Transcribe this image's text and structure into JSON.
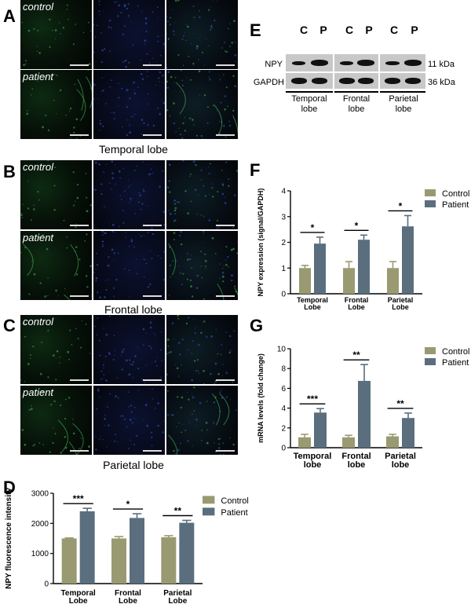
{
  "panels": {
    "A": "A",
    "B": "B",
    "C": "C",
    "D": "D",
    "E": "E",
    "F": "F",
    "G": "G"
  },
  "micrographs": {
    "control_label": "control",
    "patient_label": "patient",
    "regions": [
      "Temporal lobe",
      "Frontal lobe",
      "Parietal lobe"
    ]
  },
  "western_blot": {
    "lanes": [
      "C",
      "P",
      "C",
      "P",
      "C",
      "P"
    ],
    "rows": [
      {
        "protein": "NPY",
        "size": "11 kDa"
      },
      {
        "protein": "GAPDH",
        "size": "36 kDa"
      }
    ],
    "groups": [
      {
        "line1": "Temporal",
        "line2": "lobe"
      },
      {
        "line1": "Frontal",
        "line2": "lobe"
      },
      {
        "line1": "Parietal",
        "line2": "lobe"
      }
    ]
  },
  "colors": {
    "control": "#9a9a72",
    "patient": "#5a6e7e"
  },
  "chart_data": [
    {
      "id": "D",
      "type": "bar",
      "categories": [
        [
          "Temporal",
          "Lobe"
        ],
        [
          "Frontal",
          "Lobe"
        ],
        [
          "Parietal",
          "Lobe"
        ]
      ],
      "series": [
        {
          "name": "Control",
          "values": [
            1500,
            1500,
            1540
          ],
          "errors": [
            15,
            60,
            50
          ]
        },
        {
          "name": "Patient",
          "values": [
            2400,
            2180,
            2020
          ],
          "errors": [
            100,
            140,
            80
          ]
        }
      ],
      "significance": [
        "***",
        "*",
        "**"
      ],
      "ylabel": "NPY fluorescence intensity",
      "ylim": [
        0,
        3000
      ],
      "yticks": [
        0,
        1000,
        2000,
        3000
      ],
      "legend": "top-right"
    },
    {
      "id": "F",
      "type": "bar",
      "categories": [
        [
          "Temporal",
          "Lobe"
        ],
        [
          "Frontal",
          "Lobe"
        ],
        [
          "Parietal",
          "Lobe"
        ]
      ],
      "series": [
        {
          "name": "Control",
          "values": [
            1.0,
            1.0,
            1.0
          ],
          "errors": [
            0.1,
            0.25,
            0.25
          ]
        },
        {
          "name": "Patient",
          "values": [
            1.95,
            2.1,
            2.62
          ],
          "errors": [
            0.25,
            0.18,
            0.42
          ]
        }
      ],
      "significance": [
        "*",
        "*",
        "*"
      ],
      "ylabel": "NPY expression (signal/GAPDH)",
      "ylim": [
        0,
        4
      ],
      "yticks": [
        0,
        1,
        2,
        3,
        4
      ],
      "legend": "top-right"
    },
    {
      "id": "G",
      "type": "bar",
      "categories": [
        [
          "Temporal",
          "lobe"
        ],
        [
          "Frontal",
          "lobe"
        ],
        [
          "Parietal",
          "lobe"
        ]
      ],
      "series": [
        {
          "name": "Control",
          "values": [
            1.05,
            1.05,
            1.15
          ],
          "errors": [
            0.3,
            0.2,
            0.2
          ]
        },
        {
          "name": "Patient",
          "values": [
            3.55,
            6.75,
            3.0
          ],
          "errors": [
            0.4,
            1.65,
            0.5
          ]
        }
      ],
      "significance": [
        "***",
        "**",
        "**"
      ],
      "ylabel": "mRNA levels (fold change)",
      "ylim": [
        0,
        10
      ],
      "yticks": [
        0,
        2,
        4,
        6,
        8,
        10
      ],
      "legend": "top-right"
    }
  ]
}
